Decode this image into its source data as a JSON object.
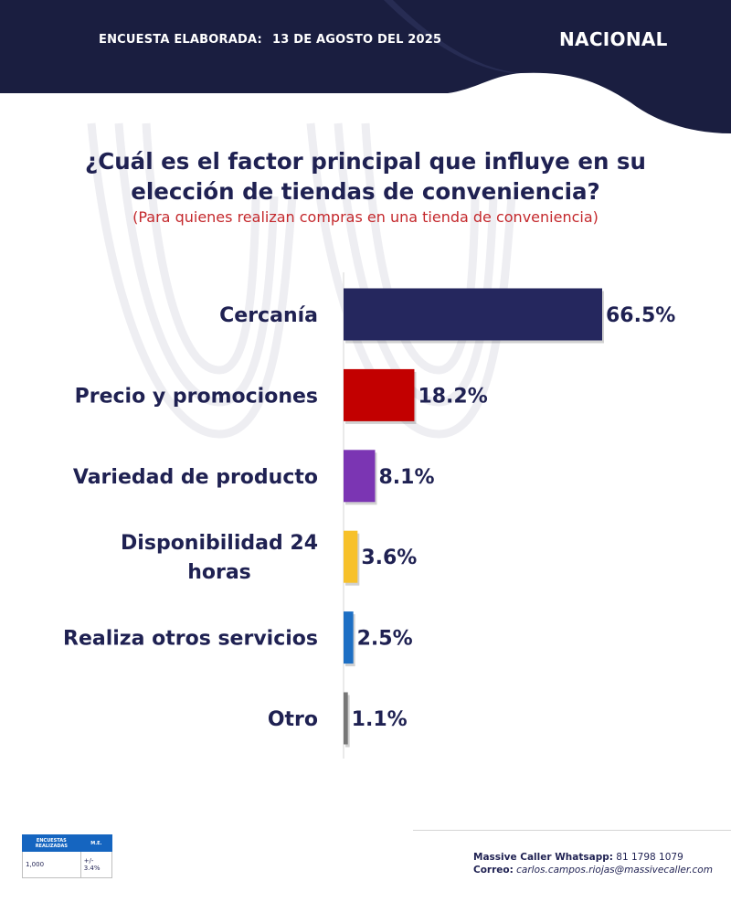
{
  "header": {
    "survey_label": "ENCUESTA ELABORADA:",
    "survey_date": "13 DE AGOSTO DEL 2025",
    "region": "NACIONAL"
  },
  "colors": {
    "navy": "#1f2152",
    "accent_red": "#c4282c"
  },
  "chart_data": {
    "type": "bar",
    "orientation": "horizontal",
    "title": "¿Cuál es el factor principal que influye en su elección de tiendas de conveniencia?",
    "subtitle": "(Para quienes realizan compras en una tienda de conveniencia)",
    "categories": [
      [
        "Cercanía"
      ],
      [
        "Precio y promociones"
      ],
      [
        "Variedad de producto"
      ],
      [
        "Disponibilidad 24",
        "horas"
      ],
      [
        "Realiza otros servicios"
      ],
      [
        "Otro"
      ]
    ],
    "values": [
      66.5,
      18.2,
      8.1,
      3.6,
      2.5,
      1.1
    ],
    "value_labels": [
      "66.5%",
      "18.2%",
      "8.1%",
      "3.6%",
      "2.5%",
      "1.1%"
    ],
    "colors": [
      "#25275e",
      "#c20000",
      "#7b35b3",
      "#f7c12a",
      "#1d6fc4",
      "#777777"
    ],
    "xlim": [
      0,
      66.5
    ],
    "grid": false,
    "legend": "none"
  },
  "stats": {
    "headers": [
      "ENCUESTAS REALIZADAS",
      "M.E."
    ],
    "values": [
      "1,000",
      "+/- 3.4%"
    ]
  },
  "contact": {
    "whatsapp_label": "Massive Caller Whatsapp:",
    "whatsapp_number": "81 1798 1079",
    "email_label": "Correo:",
    "email": "carlos.campos.riojas@massivecaller.com"
  }
}
